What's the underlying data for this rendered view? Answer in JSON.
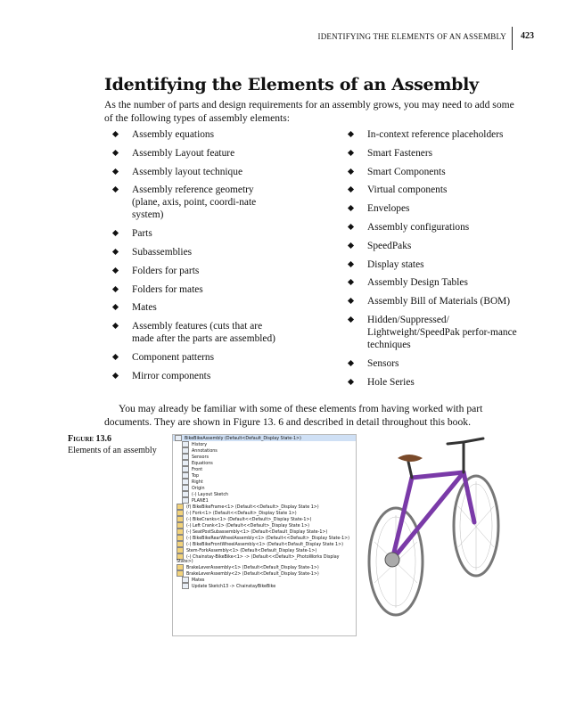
{
  "header": {
    "running_head": "IDENTIFYING THE ELEMENTS OF AN ASSEMBLY",
    "page_number": "423"
  },
  "title": "Identifying the Elements of an Assembly",
  "intro": "As the number of parts and design requirements for an assembly grows, you may need to add some of the following types of assembly elements:",
  "left_list": [
    "Assembly equations",
    "Assembly Layout feature",
    "Assembly layout technique",
    "Assembly reference geometry (plane, axis, point, coordi-nate system)",
    "Parts",
    "Subassemblies",
    "Folders for parts",
    "Folders for mates",
    "Mates",
    "Assembly features (cuts that are made after the parts are assembled)",
    "Component patterns",
    "Mirror components"
  ],
  "right_list": [
    "In-context reference placeholders",
    "Smart Fasteners",
    "Smart Components",
    "Virtual components",
    "Envelopes",
    "Assembly configurations",
    "SpeedPaks",
    "Display states",
    "Assembly Design Tables",
    "Assembly Bill of Materials (BOM)",
    "Hidden/Suppressed/ Lightweight/SpeedPak perfor-mance techniques",
    "Sensors",
    "Hole Series"
  ],
  "closing": "You may already be familiar with some of these elements from having worked with part documents. They are shown in Figure 13. 6 and described in detail throughout this book.",
  "figure": {
    "label": "Figure 13.6",
    "caption": "Elements of an assembly",
    "tree": [
      "BikeBikeAssembly (Default<Default_Display State-1>)",
      "History",
      "Annotations",
      "Sensors",
      "Equations",
      "Front",
      "Top",
      "Right",
      "Origin",
      "(-) Layout Sketch",
      "PLANE1",
      "(f) BikeBikeFrame<1> (Default<<Default>_Display State 1>)",
      "(-) Fork<1> (Default<<Default>_Display State 1>)",
      "(-) BikeCranks<1> (Default<<Default>_Display State-1>)",
      "(-) Left Crank<1> (Default<<Default>_Display State 1>)",
      "(-) SeatPostSubassembly<1> (Default<Default_Display State-1>)",
      "(-) BikeBikeRearWheelAssembly<1> (Default<<Default>_Display State-1>)",
      "(-) BikeBikeFrontWheelAssembly<1> (Default<Default_Display State 1>)",
      "Stem-ForkAssembly<1> (Default<Default_Display State-1>)",
      "(-) Chainstay-BikeBike<1> -> (Default<<Default>_PhotoWorks Display State>)",
      "BrakeLeverAssembly<1> (Default<Default_Display State-1>)",
      "BrakeLeverAssembly<2> (Default<Default_Display State-1>)",
      "Mates",
      "Update Sketch13 -> ChainstayBikeBike"
    ]
  }
}
